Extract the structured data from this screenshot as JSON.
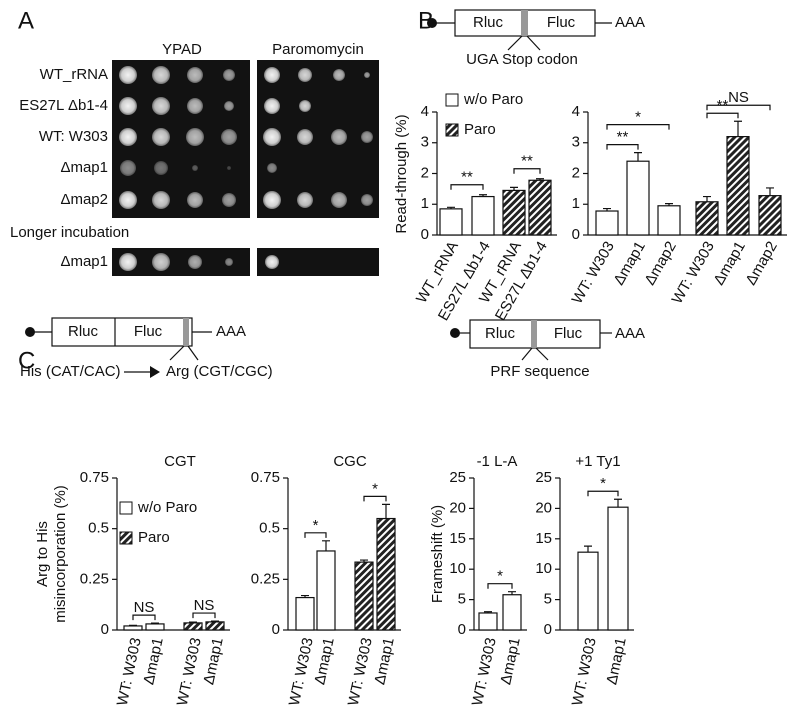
{
  "panel_labels": [
    "A",
    "B",
    "C"
  ],
  "panel_a": {
    "columns": [
      "YPAD",
      "Paromomycin"
    ],
    "rows": [
      "WT_rRNA",
      "ES27L Δb1-4",
      "WT: W303",
      "Δmap1",
      "Δmap2"
    ],
    "longer_incubation": {
      "label": "Longer incubation",
      "rows": [
        "Δmap1"
      ]
    }
  },
  "constructs": [
    {
      "labels": [
        "Rluc",
        "Fluc",
        "AAA"
      ],
      "site": "UGA Stop codon"
    },
    {
      "labels": [
        "Rluc",
        "Fluc",
        "AAA"
      ],
      "substitution": [
        "His (CAT/CAC)",
        "Arg (CGT/CGC)"
      ]
    },
    {
      "labels": [
        "Rluc",
        "Fluc",
        "AAA"
      ],
      "site": "PRF sequence"
    }
  ],
  "chart_data": [
    {
      "type": "bar",
      "ylabel": [
        "Read-through (%)"
      ],
      "ylim": [
        0,
        4
      ],
      "yticks": [
        0,
        1,
        2,
        3,
        4
      ],
      "legend": true,
      "series": [
        {
          "name": "w/o Paro",
          "hatched": false,
          "categories": [
            "WT_rRNA",
            "ES27L Δb1-4"
          ],
          "values": [
            0.85,
            1.25
          ],
          "errors": [
            0.05,
            0.06
          ]
        },
        {
          "name": "Paro",
          "hatched": true,
          "categories": [
            "WT_rRNA",
            "ES27L Δb1-4"
          ],
          "values": [
            1.45,
            1.78
          ],
          "errors": [
            0.1,
            0.05
          ]
        }
      ],
      "annotations": [
        "**",
        "**"
      ]
    },
    {
      "type": "bar",
      "ylim": [
        0,
        4
      ],
      "yticks": [
        0,
        1,
        2,
        3,
        4
      ],
      "legend": false,
      "series": [
        {
          "hatched": false,
          "categories": [
            "WT: W303",
            "Δmap1",
            "Δmap2"
          ],
          "values": [
            0.78,
            2.4,
            0.95
          ],
          "errors": [
            0.08,
            0.28,
            0.07
          ]
        },
        {
          "hatched": true,
          "categories": [
            "WT: W303",
            "Δmap1",
            "Δmap2"
          ],
          "values": [
            1.08,
            3.2,
            1.28
          ],
          "errors": [
            0.17,
            0.5,
            0.25
          ]
        }
      ],
      "annotations": [
        "**",
        "*",
        "**",
        "NS"
      ]
    },
    {
      "type": "bar",
      "title": "CGT",
      "ylabel": [
        "Arg to His",
        "misincorporation (%)"
      ],
      "ylim": [
        0,
        0.75
      ],
      "yticks": [
        0,
        0.25,
        0.5,
        0.75
      ],
      "legend": true,
      "series": [
        {
          "name": "w/o Paro",
          "hatched": false,
          "categories": [
            "WT: W303",
            "Δmap1"
          ],
          "values": [
            0.02,
            0.03
          ],
          "errors": [
            0.003,
            0.004
          ]
        },
        {
          "name": "Paro",
          "hatched": true,
          "categories": [
            "WT: W303",
            "Δmap1"
          ],
          "values": [
            0.035,
            0.04
          ],
          "errors": [
            0.004,
            0.004
          ]
        }
      ],
      "annotations": [
        "NS",
        "NS"
      ]
    },
    {
      "type": "bar",
      "title": "CGC",
      "ylim": [
        0,
        0.75
      ],
      "yticks": [
        0,
        0.25,
        0.5,
        0.75
      ],
      "legend": false,
      "series": [
        {
          "hatched": false,
          "categories": [
            "WT: W303",
            "Δmap1"
          ],
          "values": [
            0.16,
            0.39
          ],
          "errors": [
            0.01,
            0.05
          ]
        },
        {
          "hatched": true,
          "categories": [
            "WT: W303",
            "Δmap1"
          ],
          "values": [
            0.335,
            0.55
          ],
          "errors": [
            0.01,
            0.07
          ]
        }
      ],
      "annotations": [
        "*",
        "*"
      ]
    },
    {
      "type": "bar",
      "title": "-1  L-A",
      "ylabel": [
        "Frameshift (%)"
      ],
      "ylim": [
        0,
        25
      ],
      "yticks": [
        0,
        5,
        10,
        15,
        20,
        25
      ],
      "legend": false,
      "series": [
        {
          "hatched": false,
          "categories": [
            "WT: W303",
            "Δmap1"
          ],
          "values": [
            2.8,
            5.8
          ],
          "errors": [
            0.2,
            0.5
          ]
        }
      ],
      "annotations": [
        "*"
      ]
    },
    {
      "type": "bar",
      "title": "+1  Ty1",
      "ylim": [
        0,
        25
      ],
      "yticks": [
        0,
        5,
        10,
        15,
        20,
        25
      ],
      "legend": false,
      "series": [
        {
          "hatched": false,
          "categories": [
            "WT: W303",
            "Δmap1"
          ],
          "values": [
            12.8,
            20.2
          ],
          "errors": [
            1,
            1.3
          ]
        }
      ],
      "annotations": [
        "*"
      ]
    }
  ]
}
